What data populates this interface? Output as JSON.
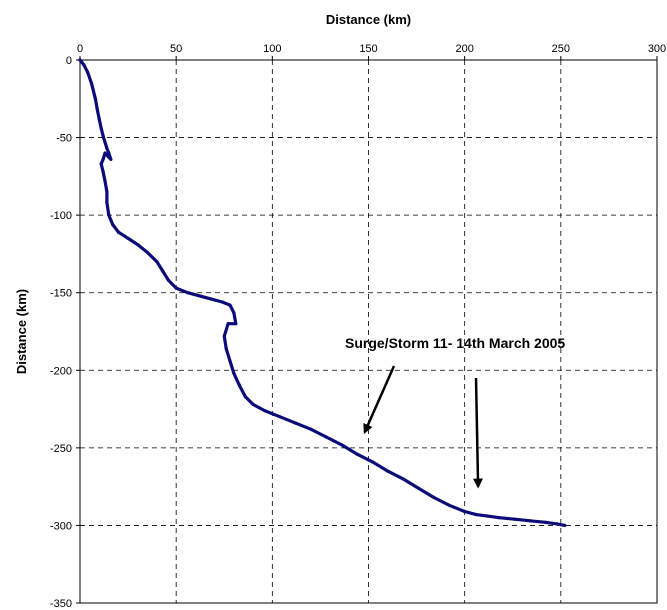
{
  "chart_data": {
    "type": "line",
    "title": "",
    "xlabel": "Distance (km)",
    "ylabel": "Distance (km)",
    "x_axis_position": "top",
    "xlim": [
      0,
      300
    ],
    "ylim": [
      -350,
      0
    ],
    "xticks": [
      "0",
      "50",
      "100",
      "150",
      "200",
      "250",
      "300"
    ],
    "yticks": [
      "0",
      "-50",
      "-100",
      "-150",
      "-200",
      "-250",
      "-300",
      "-350"
    ],
    "grid": "dashed",
    "legend": "none",
    "series": [
      {
        "color": "#0b0b7a",
        "points": [
          [
            0,
            0
          ],
          [
            2,
            -3
          ],
          [
            4,
            -8
          ],
          [
            6,
            -15
          ],
          [
            8,
            -25
          ],
          [
            9,
            -32
          ],
          [
            10,
            -38
          ],
          [
            11,
            -44
          ],
          [
            12,
            -49
          ],
          [
            13,
            -53
          ],
          [
            14,
            -57
          ],
          [
            15,
            -60
          ],
          [
            16,
            -64
          ],
          [
            13,
            -60
          ],
          [
            12,
            -64
          ],
          [
            11,
            -67
          ],
          [
            12,
            -72
          ],
          [
            13,
            -78
          ],
          [
            14,
            -85
          ],
          [
            14,
            -92
          ],
          [
            15,
            -100
          ],
          [
            17,
            -106
          ],
          [
            20,
            -111
          ],
          [
            25,
            -115
          ],
          [
            30,
            -119
          ],
          [
            35,
            -124
          ],
          [
            40,
            -130
          ],
          [
            43,
            -136
          ],
          [
            46,
            -142
          ],
          [
            50,
            -147
          ],
          [
            56,
            -150
          ],
          [
            62,
            -152
          ],
          [
            68,
            -154
          ],
          [
            74,
            -156
          ],
          [
            78,
            -158
          ],
          [
            80,
            -163
          ],
          [
            81,
            -170
          ],
          [
            77,
            -170
          ],
          [
            75,
            -178
          ],
          [
            76,
            -186
          ],
          [
            78,
            -194
          ],
          [
            80,
            -202
          ],
          [
            83,
            -210
          ],
          [
            86,
            -217
          ],
          [
            90,
            -222
          ],
          [
            96,
            -226
          ],
          [
            104,
            -230
          ],
          [
            112,
            -234
          ],
          [
            120,
            -238
          ],
          [
            128,
            -243
          ],
          [
            136,
            -248
          ],
          [
            144,
            -254
          ],
          [
            152,
            -259
          ],
          [
            160,
            -265
          ],
          [
            168,
            -270
          ],
          [
            176,
            -276
          ],
          [
            184,
            -282
          ],
          [
            192,
            -287
          ],
          [
            200,
            -291
          ],
          [
            206,
            -293
          ],
          [
            212,
            -294
          ],
          [
            218,
            -295
          ],
          [
            226,
            -296
          ],
          [
            234,
            -297
          ],
          [
            242,
            -298
          ],
          [
            248,
            -299
          ],
          [
            252,
            -300
          ]
        ]
      }
    ],
    "annotations": [
      {
        "text": "Surge/Storm 11- 14th March 2005",
        "arrows_to": [
          [
            148,
            -240
          ],
          [
            207,
            -275
          ]
        ]
      }
    ]
  },
  "colors": {
    "line": "#0b0b7a",
    "grid": "#000000",
    "background": "#ffffff"
  }
}
